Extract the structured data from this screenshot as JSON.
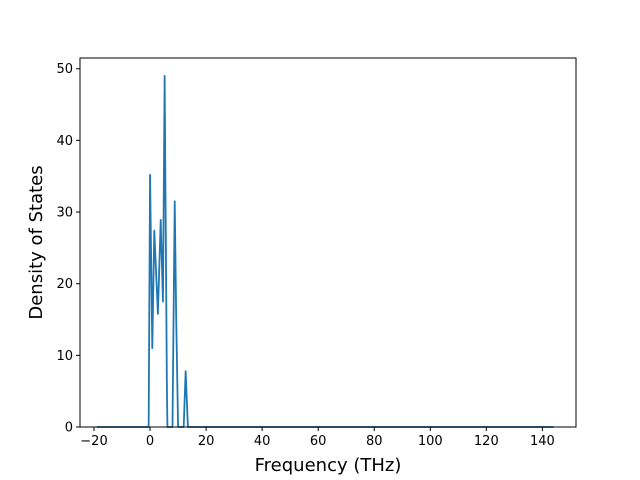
{
  "chart_data": {
    "type": "line",
    "title": "",
    "xlabel": "Frequency (THz)",
    "ylabel": "Density of States",
    "xlim": [
      -25,
      152
    ],
    "ylim": [
      0,
      51.5
    ],
    "xticks": [
      -20,
      0,
      20,
      40,
      60,
      80,
      100,
      120,
      140
    ],
    "xtick_labels": [
      "−20",
      "0",
      "20",
      "40",
      "60",
      "80",
      "100",
      "120",
      "140"
    ],
    "yticks": [
      0,
      10,
      20,
      30,
      40,
      50
    ],
    "ytick_labels": [
      "0",
      "10",
      "20",
      "30",
      "40",
      "50"
    ],
    "grid": false,
    "legend": "none",
    "series": [
      {
        "color": "#1f77b4",
        "x": [
          -19,
          -1,
          -0.5,
          0,
          0.8,
          1.5,
          2.8,
          3.8,
          4.6,
          5.2,
          6.0,
          6.2,
          7.0,
          8.0,
          8.8,
          9.3,
          10.0,
          12.0,
          12.7,
          13.5,
          14.0,
          144
        ],
        "y": [
          0,
          0,
          0,
          35.2,
          11,
          27.4,
          15.8,
          28.9,
          17.5,
          49,
          6,
          0,
          0,
          0,
          31.5,
          16,
          0,
          0,
          7.8,
          0,
          0,
          0
        ]
      }
    ]
  }
}
